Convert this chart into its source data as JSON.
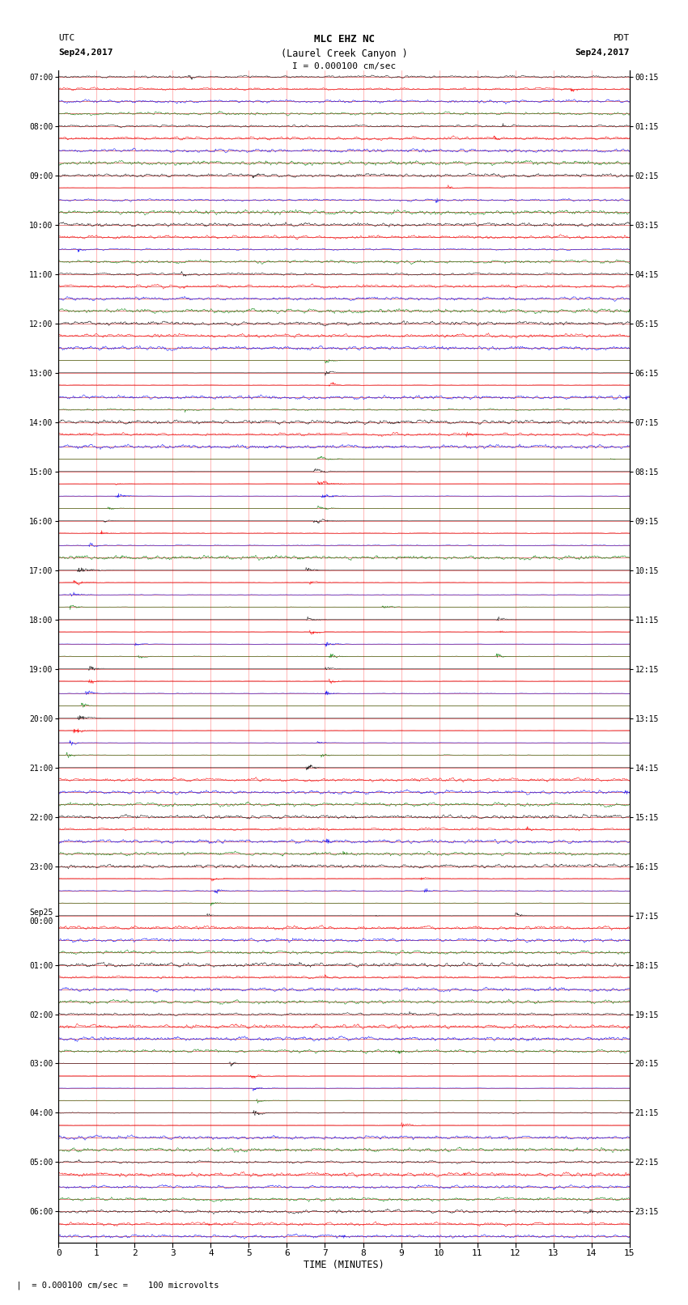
{
  "title_line1": "MLC EHZ NC",
  "title_line2": "(Laurel Creek Canyon )",
  "scale_label": "I = 0.000100 cm/sec",
  "left_label_top": "UTC",
  "left_label_date": "Sep24,2017",
  "right_label_top": "PDT",
  "right_label_date": "Sep24,2017",
  "bottom_label": "TIME (MINUTES)",
  "bottom_note": "  |  = 0.000100 cm/sec =    100 microvolts",
  "xlabel_ticks": [
    0,
    1,
    2,
    3,
    4,
    5,
    6,
    7,
    8,
    9,
    10,
    11,
    12,
    13,
    14,
    15
  ],
  "utc_times_labeled": [
    "07:00",
    "08:00",
    "09:00",
    "10:00",
    "11:00",
    "12:00",
    "13:00",
    "14:00",
    "15:00",
    "16:00",
    "17:00",
    "18:00",
    "19:00",
    "20:00",
    "21:00",
    "22:00",
    "23:00",
    "Sep25\n00:00",
    "01:00",
    "02:00",
    "03:00",
    "04:00",
    "05:00",
    "06:00"
  ],
  "pdt_times_labeled": [
    "00:15",
    "01:15",
    "02:15",
    "03:15",
    "04:15",
    "05:15",
    "06:15",
    "07:15",
    "08:15",
    "09:15",
    "10:15",
    "11:15",
    "12:15",
    "13:15",
    "14:15",
    "15:15",
    "16:15",
    "17:15",
    "18:15",
    "19:15",
    "20:15",
    "21:15",
    "22:15",
    "23:15"
  ],
  "colors": [
    "black",
    "red",
    "blue",
    "green"
  ],
  "n_rows": 95,
  "n_points": 1800,
  "bg_color": "#ffffff",
  "trace_color_cycle": [
    "black",
    "red",
    "blue",
    "green"
  ],
  "xmin": 0,
  "xmax": 15,
  "figsize": [
    8.5,
    16.13
  ],
  "dpi": 100,
  "rows_per_hour": 4,
  "total_hours": 24,
  "red_line_color": "#cc0000",
  "red_line_alpha": 0.7,
  "vert_line_color": "red",
  "vert_line_alpha": 0.4
}
